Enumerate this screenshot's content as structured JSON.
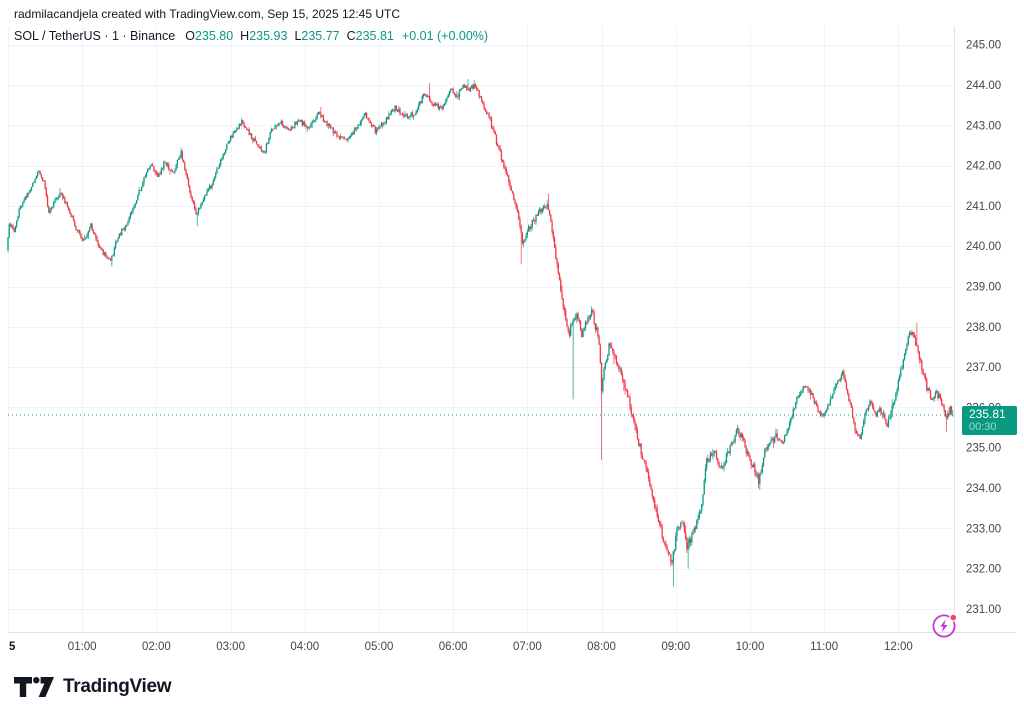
{
  "attribution": "radmilacandjela created with TradingView.com, Sep 15, 2025 12:45 UTC",
  "header": {
    "title": "SOL / TetherUS · 1 · Binance",
    "ohlc": [
      {
        "label": "O",
        "value": "235.80"
      },
      {
        "label": "H",
        "value": "235.93"
      },
      {
        "label": "L",
        "value": "235.77"
      },
      {
        "label": "C",
        "value": "235.81"
      }
    ],
    "change": "+0.01 (+0.00%)"
  },
  "price_label": {
    "price": "235.81",
    "countdown": "00:30"
  },
  "footer": {
    "brand": "TradingView"
  },
  "colors": {
    "up": "#089981",
    "down": "#f23645",
    "text": "#131722",
    "axis_text": "#434651",
    "grid": "#f0f3fa",
    "border": "#e0e3eb",
    "current_price_line": "#089981",
    "badge_bg": "#089981",
    "badge_text": "#ffffff",
    "boost": "#bf3bcf",
    "alert_dot": "#f5484f"
  },
  "chart_data": {
    "type": "candlestick",
    "title": "SOL / TetherUS",
    "exchange": "Binance",
    "interval_minutes": 1,
    "minutes": 765,
    "session_start": "00:00",
    "session_end": "12:45",
    "current_price": 235.81,
    "last_candle": {
      "open": 235.8,
      "high": 235.93,
      "low": 235.77,
      "close": 235.81
    },
    "price_axis": {
      "min": 231,
      "max": 245,
      "step": 1,
      "ticks": [
        {
          "value": 245,
          "label": "245.00"
        },
        {
          "value": 244,
          "label": "244.00"
        },
        {
          "value": 243,
          "label": "243.00"
        },
        {
          "value": 242,
          "label": "242.00"
        },
        {
          "value": 241,
          "label": "241.00"
        },
        {
          "value": 240,
          "label": "240.00"
        },
        {
          "value": 239,
          "label": "239.00"
        },
        {
          "value": 238,
          "label": "238.00"
        },
        {
          "value": 237,
          "label": "237.00"
        },
        {
          "value": 236,
          "label": "236.00"
        },
        {
          "value": 235,
          "label": "235.00"
        },
        {
          "value": 234,
          "label": "234.00"
        },
        {
          "value": 233,
          "label": "233.00"
        },
        {
          "value": 232,
          "label": "232.00"
        },
        {
          "value": 231,
          "label": "231.00"
        }
      ]
    },
    "time_axis": {
      "ticks": [
        {
          "minute": 0,
          "label": "5",
          "bold": true
        },
        {
          "minute": 60,
          "label": "01:00"
        },
        {
          "minute": 120,
          "label": "02:00"
        },
        {
          "minute": 180,
          "label": "03:00"
        },
        {
          "minute": 240,
          "label": "04:00"
        },
        {
          "minute": 300,
          "label": "05:00"
        },
        {
          "minute": 360,
          "label": "06:00"
        },
        {
          "minute": 420,
          "label": "07:00"
        },
        {
          "minute": 480,
          "label": "08:00"
        },
        {
          "minute": 540,
          "label": "09:00"
        },
        {
          "minute": 600,
          "label": "10:00"
        },
        {
          "minute": 660,
          "label": "11:00"
        },
        {
          "minute": 720,
          "label": "12:00"
        }
      ]
    },
    "anchors": [
      [
        0,
        239.9
      ],
      [
        2,
        240.6
      ],
      [
        6,
        240.4
      ],
      [
        10,
        240.9
      ],
      [
        15,
        241.2
      ],
      [
        20,
        241.5
      ],
      [
        26,
        241.9
      ],
      [
        30,
        241.6
      ],
      [
        34,
        240.85
      ],
      [
        38,
        241.1
      ],
      [
        44,
        241.35
      ],
      [
        50,
        240.9
      ],
      [
        56,
        240.45
      ],
      [
        62,
        240.15
      ],
      [
        68,
        240.5
      ],
      [
        74,
        240.0
      ],
      [
        80,
        239.75
      ],
      [
        84,
        239.6
      ],
      [
        90,
        240.25
      ],
      [
        96,
        240.5
      ],
      [
        103,
        241.0
      ],
      [
        110,
        241.6
      ],
      [
        116,
        242.05
      ],
      [
        122,
        241.7
      ],
      [
        128,
        242.1
      ],
      [
        134,
        241.8
      ],
      [
        141,
        242.3
      ],
      [
        147,
        241.5
      ],
      [
        153,
        240.75
      ],
      [
        159,
        241.2
      ],
      [
        166,
        241.55
      ],
      [
        173,
        242.15
      ],
      [
        181,
        242.7
      ],
      [
        190,
        243.1
      ],
      [
        197,
        242.75
      ],
      [
        204,
        242.45
      ],
      [
        208,
        242.3
      ],
      [
        214,
        242.9
      ],
      [
        221,
        243.1
      ],
      [
        228,
        242.85
      ],
      [
        236,
        243.15
      ],
      [
        244,
        242.9
      ],
      [
        252,
        243.3
      ],
      [
        260,
        243.0
      ],
      [
        268,
        242.7
      ],
      [
        276,
        242.65
      ],
      [
        284,
        243.0
      ],
      [
        290,
        243.3
      ],
      [
        298,
        242.85
      ],
      [
        306,
        243.1
      ],
      [
        314,
        243.45
      ],
      [
        322,
        243.2
      ],
      [
        330,
        243.3
      ],
      [
        338,
        243.8
      ],
      [
        344,
        243.55
      ],
      [
        352,
        243.4
      ],
      [
        359,
        243.9
      ],
      [
        364,
        243.7
      ],
      [
        369,
        244.0
      ],
      [
        374,
        243.9
      ],
      [
        379,
        244.0
      ],
      [
        385,
        243.5
      ],
      [
        390,
        243.2
      ],
      [
        396,
        242.6
      ],
      [
        402,
        242.0
      ],
      [
        408,
        241.4
      ],
      [
        413,
        240.8
      ],
      [
        417,
        240.1
      ],
      [
        421,
        240.4
      ],
      [
        427,
        240.65
      ],
      [
        433,
        240.95
      ],
      [
        437,
        241.1
      ],
      [
        440,
        240.6
      ],
      [
        443,
        239.9
      ],
      [
        446,
        239.3
      ],
      [
        449,
        238.7
      ],
      [
        452,
        238.2
      ],
      [
        455,
        237.8
      ],
      [
        457,
        238.1
      ],
      [
        461,
        238.35
      ],
      [
        465,
        237.8
      ],
      [
        469,
        238.15
      ],
      [
        473,
        238.4
      ],
      [
        477,
        237.9
      ],
      [
        479,
        237.6
      ],
      [
        481,
        236.5
      ],
      [
        483,
        237.0
      ],
      [
        487,
        237.5
      ],
      [
        491,
        237.3
      ],
      [
        495,
        236.95
      ],
      [
        499,
        236.6
      ],
      [
        503,
        236.2
      ],
      [
        508,
        235.5
      ],
      [
        514,
        234.8
      ],
      [
        520,
        234.1
      ],
      [
        526,
        233.3
      ],
      [
        532,
        232.6
      ],
      [
        536,
        232.3
      ],
      [
        538,
        232.1
      ],
      [
        542,
        233.0
      ],
      [
        546,
        233.2
      ],
      [
        550,
        232.5
      ],
      [
        554,
        232.8
      ],
      [
        558,
        233.1
      ],
      [
        562,
        233.6
      ],
      [
        566,
        234.7
      ],
      [
        572,
        234.9
      ],
      [
        578,
        234.5
      ],
      [
        584,
        234.9
      ],
      [
        590,
        235.4
      ],
      [
        594,
        235.3
      ],
      [
        598,
        234.9
      ],
      [
        604,
        234.5
      ],
      [
        608,
        234.15
      ],
      [
        612,
        234.8
      ],
      [
        616,
        235.1
      ],
      [
        622,
        235.3
      ],
      [
        628,
        235.15
      ],
      [
        634,
        235.7
      ],
      [
        640,
        236.3
      ],
      [
        646,
        236.55
      ],
      [
        652,
        236.25
      ],
      [
        658,
        235.75
      ],
      [
        664,
        236.0
      ],
      [
        670,
        236.5
      ],
      [
        676,
        236.85
      ],
      [
        682,
        236.1
      ],
      [
        686,
        235.4
      ],
      [
        690,
        235.25
      ],
      [
        694,
        235.8
      ],
      [
        698,
        236.15
      ],
      [
        702,
        235.8
      ],
      [
        706,
        236.0
      ],
      [
        712,
        235.55
      ],
      [
        718,
        236.2
      ],
      [
        723,
        236.9
      ],
      [
        728,
        237.6
      ],
      [
        732,
        237.95
      ],
      [
        736,
        237.45
      ],
      [
        740,
        237.0
      ],
      [
        744,
        236.5
      ],
      [
        748,
        236.2
      ],
      [
        752,
        236.35
      ],
      [
        756,
        236.15
      ],
      [
        760,
        235.75
      ],
      [
        763,
        235.95
      ],
      [
        765,
        235.81
      ]
    ],
    "wick_events": [
      {
        "m": 84,
        "low": 239.5
      },
      {
        "m": 153,
        "low": 240.5
      },
      {
        "m": 341,
        "high": 244.05
      },
      {
        "m": 372,
        "high": 244.15
      },
      {
        "m": 415,
        "low": 239.55
      },
      {
        "m": 437,
        "high": 241.3
      },
      {
        "m": 457,
        "low": 236.2
      },
      {
        "m": 480,
        "low": 234.7
      },
      {
        "m": 538,
        "low": 231.55
      },
      {
        "m": 550,
        "low": 232.0
      },
      {
        "m": 608,
        "low": 233.95
      },
      {
        "m": 735,
        "high": 238.1
      },
      {
        "m": 759,
        "low": 235.4
      }
    ],
    "volatility": [
      [
        0,
        390,
        0.06
      ],
      [
        390,
        470,
        0.085
      ],
      [
        470,
        620,
        0.105
      ],
      [
        620,
        700,
        0.07
      ],
      [
        700,
        765,
        0.085
      ]
    ],
    "seed": 12,
    "grid": true,
    "legend_position": "top-left"
  }
}
